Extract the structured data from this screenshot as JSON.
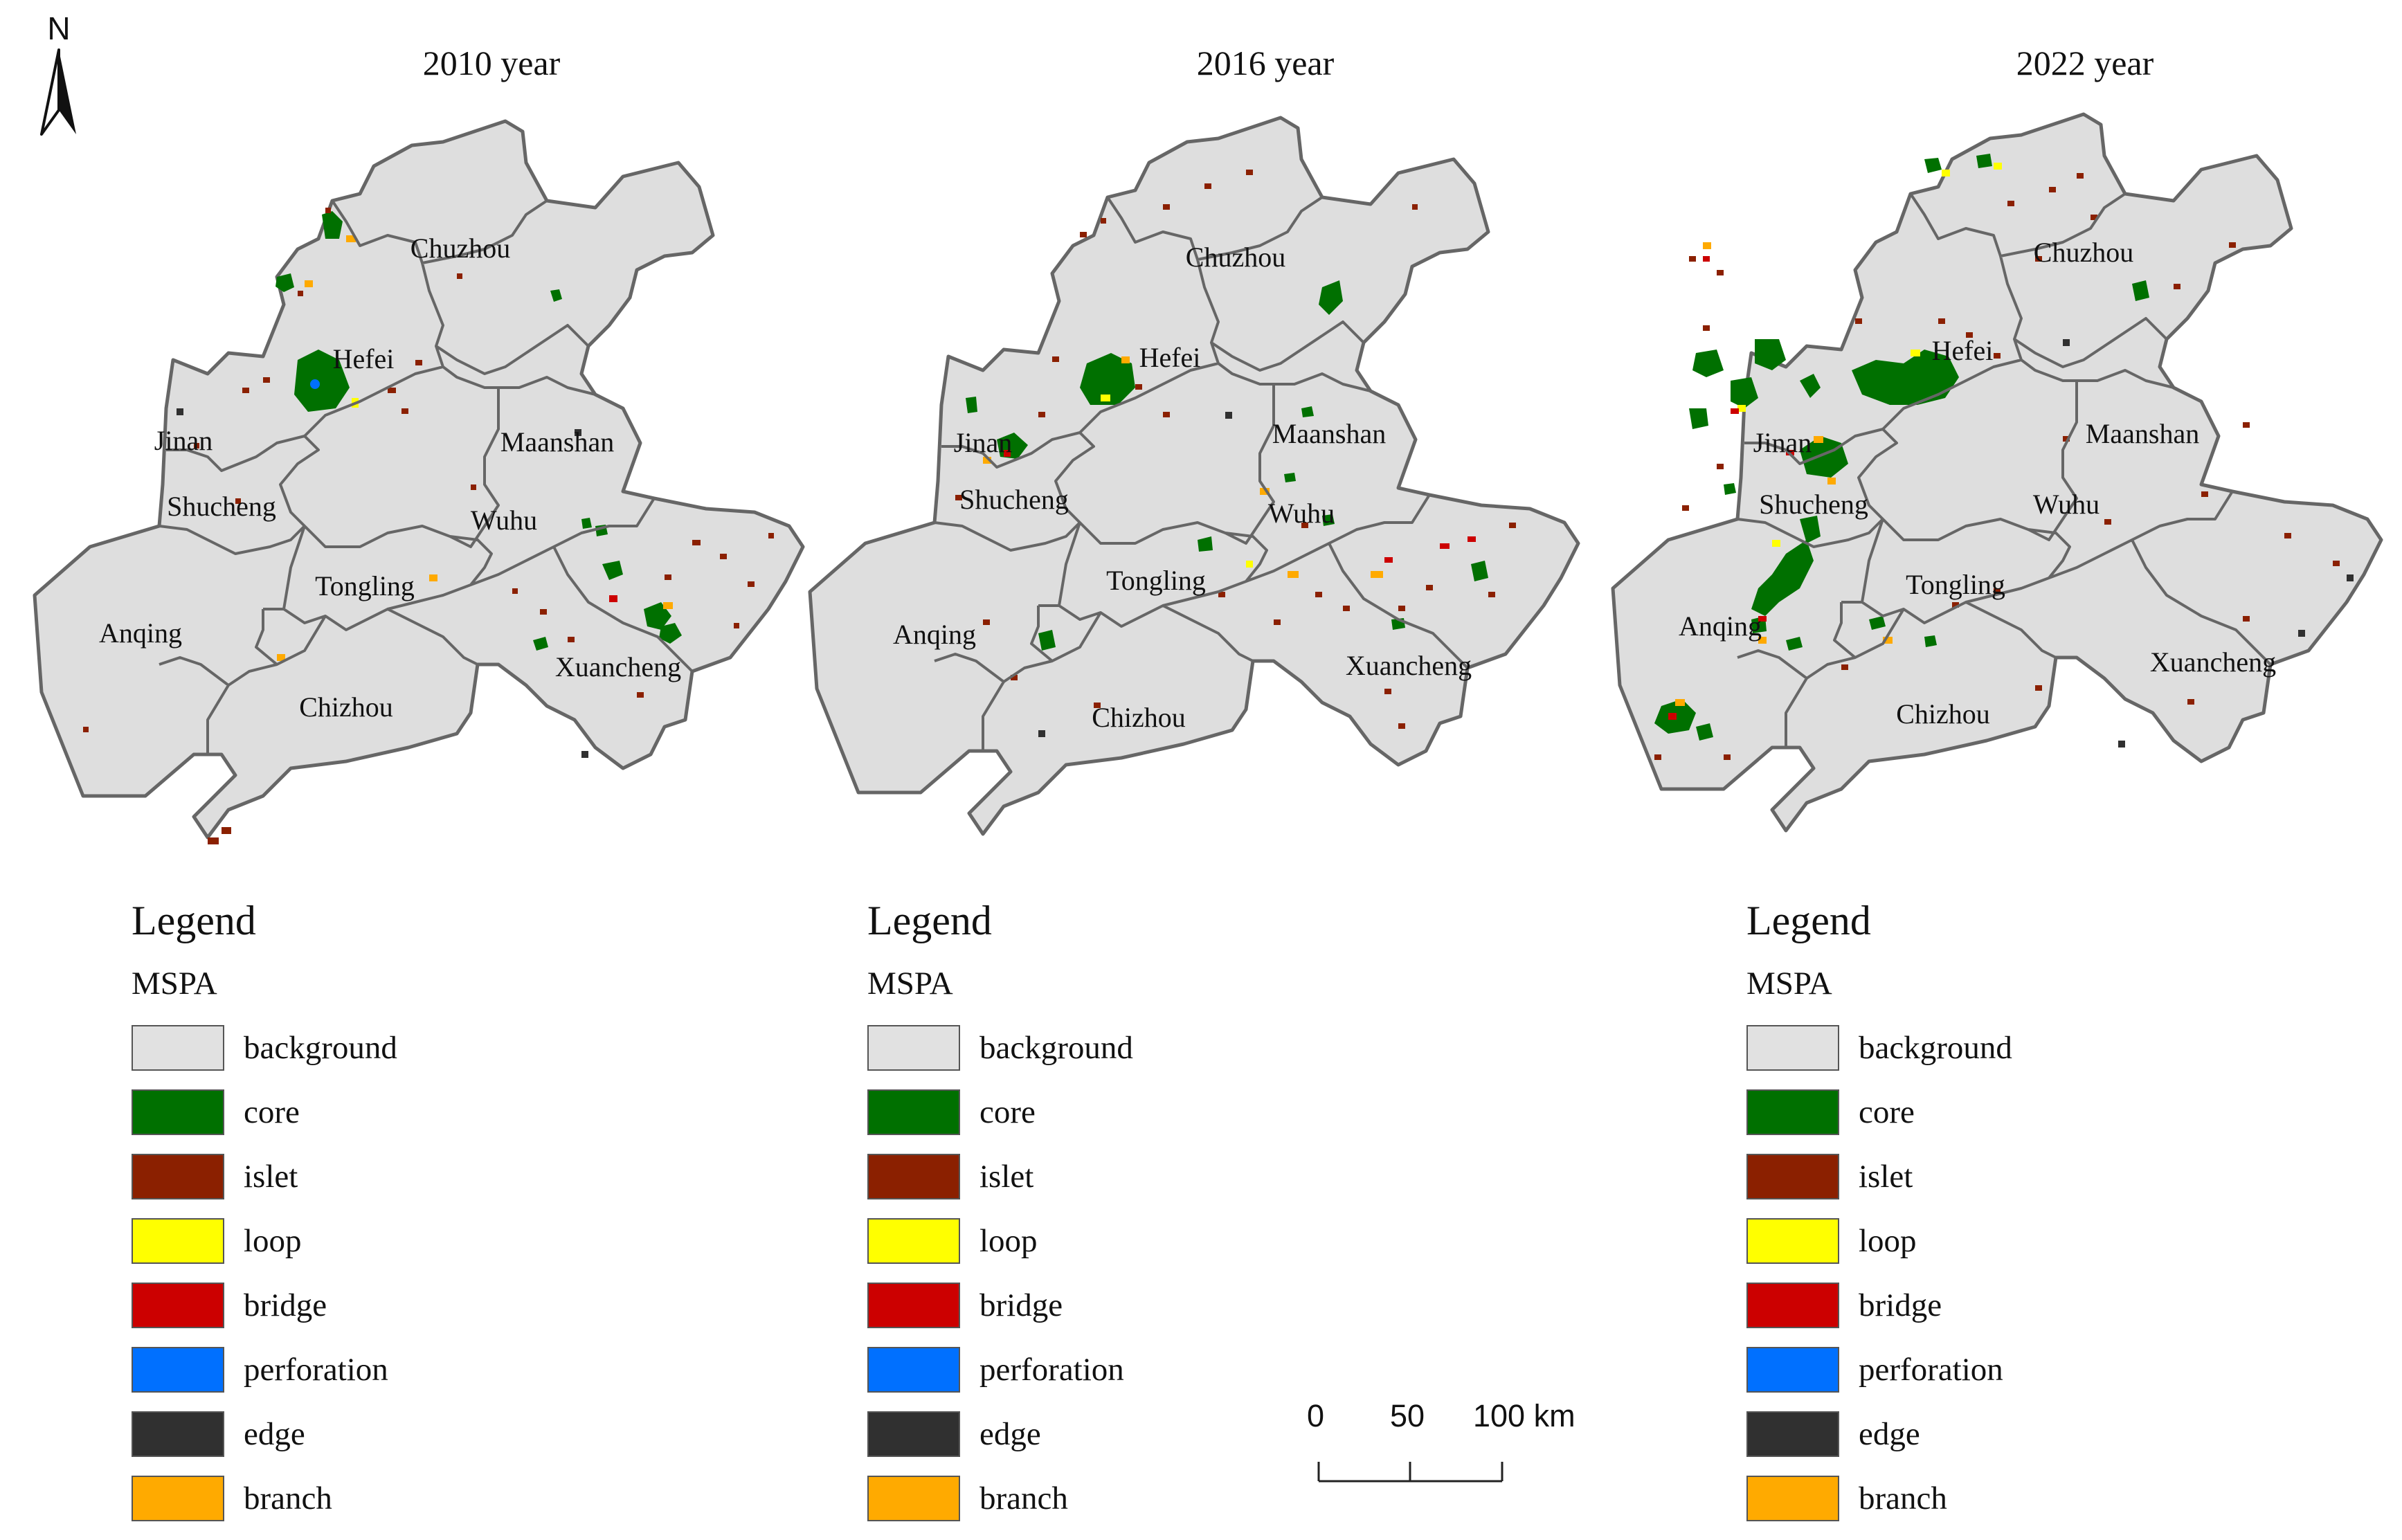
{
  "north_arrow": {
    "label": "N",
    "icon": "north-arrow-icon"
  },
  "panels": [
    {
      "title": "2010 year",
      "cities": {
        "chuzhou": "Chuzhou",
        "hefei": "Hefei",
        "jinan": "Jinan",
        "maanshan": "Maanshan",
        "shucheng": "Shucheng",
        "wuhu": "Wuhu",
        "tongling": "Tongling",
        "anqing": "Anqing",
        "xuancheng": "Xuancheng",
        "chizhou": "Chizhou"
      }
    },
    {
      "title": "2016 year",
      "cities": {
        "chuzhou": "Chuzhou",
        "hefei": "Hefei",
        "jinan": "Jinan",
        "maanshan": "Maanshan",
        "shucheng": "Shucheng",
        "wuhu": "Wuhu",
        "tongling": "Tongling",
        "anqing": "Anqing",
        "xuancheng": "Xuancheng",
        "chizhou": "Chizhou"
      }
    },
    {
      "title": "2022 year",
      "cities": {
        "chuzhou": "Chuzhou",
        "hefei": "Hefei",
        "jinan": "Jinan",
        "maanshan": "Maanshan",
        "shucheng": "Shucheng",
        "wuhu": "Wuhu",
        "tongling": "Tongling",
        "anqing": "Anqing",
        "xuancheng": "Xuancheng",
        "chizhou": "Chizhou"
      }
    }
  ],
  "legend": {
    "title": "Legend",
    "subtitle": "MSPA",
    "items": [
      {
        "label": "background",
        "color": "#e1e1e1"
      },
      {
        "label": "core",
        "color": "#007000"
      },
      {
        "label": "islet",
        "color": "#8b2000"
      },
      {
        "label": "loop",
        "color": "#ffff00"
      },
      {
        "label": "bridge",
        "color": "#cc0000"
      },
      {
        "label": "perforation",
        "color": "#0070ff"
      },
      {
        "label": "edge",
        "color": "#303030"
      },
      {
        "label": "branch",
        "color": "#ffaa00"
      }
    ]
  },
  "scale_bar": {
    "labels": [
      "0",
      "50",
      "100 km"
    ]
  },
  "colors": {
    "region_fill": "#dedede",
    "region_border": "#666666"
  }
}
